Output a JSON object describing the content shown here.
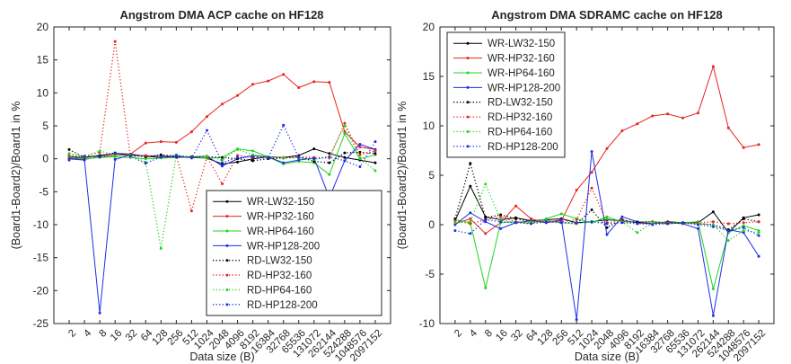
{
  "figure": {
    "shared_xlabel": "Data size (B)",
    "shared_ylabel": "(Board1-Board2)/Board1 in %"
  },
  "chart_data": [
    {
      "type": "line",
      "title": "Angstrom DMA ACP cache on HF128",
      "xlabel": "Data size (B)",
      "ylabel": "(Board1-Board2)/Board1 in %",
      "categories": [
        "2",
        "4",
        "8",
        "16",
        "32",
        "64",
        "128",
        "256",
        "512",
        "1024",
        "2048",
        "4096",
        "8192",
        "16384",
        "32768",
        "65536",
        "131072",
        "262144",
        "524288",
        "1048576",
        "2097152"
      ],
      "ylim": [
        -25,
        20
      ],
      "yticks": [
        -25,
        -20,
        -15,
        -10,
        -5,
        0,
        5,
        10,
        15,
        20
      ],
      "legend_position": "lower-right",
      "series": [
        {
          "name": "WR-LW32-150",
          "color": "#000000",
          "style": "solid",
          "values": [
            0.3,
            0.2,
            0.5,
            0.8,
            0.7,
            0.4,
            0.2,
            0.3,
            0.2,
            0.1,
            -0.8,
            -0.5,
            0.0,
            0.3,
            0.2,
            0.5,
            1.5,
            0.8,
            0.2,
            -0.2,
            -0.6
          ]
        },
        {
          "name": "WR-HP32-160",
          "color": "#e8231f",
          "style": "solid",
          "values": [
            0.1,
            -0.1,
            0.3,
            0.5,
            0.7,
            2.4,
            2.6,
            2.5,
            4.1,
            6.4,
            8.3,
            9.6,
            11.3,
            11.8,
            12.8,
            10.8,
            11.7,
            11.6,
            4.1,
            1.8,
            1.4
          ]
        },
        {
          "name": "WR-HP64-160",
          "color": "#20d420",
          "style": "solid",
          "values": [
            0.2,
            0.0,
            0.2,
            0.3,
            0.2,
            0.0,
            0.1,
            0.2,
            0.3,
            0.1,
            0.2,
            1.5,
            1.2,
            0.3,
            -0.8,
            -0.4,
            -0.6,
            -2.4,
            3.8,
            0.0,
            0.6
          ]
        },
        {
          "name": "WR-HP128-200",
          "color": "#1d2ee8",
          "style": "solid",
          "values": [
            0.0,
            -0.2,
            -23.4,
            -0.1,
            0.6,
            0.4,
            0.5,
            0.2,
            0.3,
            0.4,
            -1.1,
            0.0,
            0.5,
            0.3,
            -0.6,
            -0.2,
            0.1,
            -5.9,
            -0.3,
            2.2,
            1.4
          ]
        },
        {
          "name": "RD-LW32-150",
          "color": "#000000",
          "style": "dotted",
          "values": [
            1.4,
            0.2,
            0.5,
            0.9,
            0.5,
            0.3,
            0.6,
            0.4,
            0.3,
            0.3,
            0.2,
            0.0,
            -0.3,
            0.0,
            0.1,
            0.3,
            -0.4,
            -0.6,
            0.9,
            1.0,
            0.8
          ]
        },
        {
          "name": "RD-HP32-160",
          "color": "#e8231f",
          "style": "dotted",
          "values": [
            0.5,
            0.4,
            1.0,
            17.8,
            0.4,
            0.5,
            0.3,
            0.5,
            -7.9,
            0.3,
            -3.8,
            0.5,
            0.2,
            0.3,
            0.1,
            0.3,
            0.2,
            0.1,
            5.4,
            0.6,
            1.2
          ]
        },
        {
          "name": "RD-HP64-160",
          "color": "#20d420",
          "style": "dotted",
          "values": [
            0.8,
            0.3,
            1.2,
            0.6,
            0.5,
            -0.5,
            -13.6,
            0.6,
            0.2,
            0.4,
            -0.2,
            1.4,
            0.6,
            0.3,
            0.2,
            0.1,
            -0.1,
            0.3,
            5.0,
            0.1,
            -1.8
          ]
        },
        {
          "name": "RD-HP128-200",
          "color": "#1d2ee8",
          "style": "dotted",
          "values": [
            -0.2,
            0.4,
            0.3,
            0.8,
            0.4,
            -0.7,
            0.3,
            0.5,
            0.1,
            4.3,
            -0.6,
            0.2,
            0.3,
            0.1,
            5.1,
            0.2,
            0.0,
            0.3,
            -0.3,
            -1.2,
            2.6
          ]
        }
      ]
    },
    {
      "type": "line",
      "title": "Angstrom DMA SDRAMC cache on HF128",
      "xlabel": "Data size (B)",
      "ylabel": "(Board1-Board2)/Board1 in %",
      "categories": [
        "2",
        "4",
        "8",
        "16",
        "32",
        "64",
        "128",
        "256",
        "512",
        "1024",
        "2048",
        "4096",
        "8192",
        "16384",
        "32768",
        "65536",
        "131072",
        "262144",
        "524288",
        "1048576",
        "2097152"
      ],
      "ylim": [
        -10,
        20
      ],
      "yticks": [
        -10,
        -5,
        0,
        5,
        10,
        15,
        20
      ],
      "legend_position": "upper-left",
      "series": [
        {
          "name": "WR-LW32-150",
          "color": "#000000",
          "style": "solid",
          "values": [
            0.4,
            3.9,
            0.8,
            0.5,
            0.7,
            0.4,
            0.5,
            0.6,
            0.2,
            0.3,
            0.5,
            0.4,
            0.2,
            0.1,
            0.3,
            0.2,
            0.2,
            1.3,
            -0.8,
            0.7,
            1.0
          ]
        },
        {
          "name": "WR-HP32-160",
          "color": "#e8231f",
          "style": "solid",
          "values": [
            0.1,
            0.6,
            -0.9,
            0.2,
            1.9,
            0.6,
            0.2,
            0.4,
            3.5,
            5.3,
            7.7,
            9.5,
            10.2,
            11.0,
            11.2,
            10.8,
            11.3,
            16.0,
            9.8,
            7.8,
            8.1
          ]
        },
        {
          "name": "WR-HP64-160",
          "color": "#20d420",
          "style": "solid",
          "values": [
            0.5,
            0.2,
            -6.4,
            0.2,
            0.3,
            0.1,
            0.6,
            1.1,
            0.6,
            0.2,
            0.8,
            0.3,
            0.3,
            0.3,
            0.2,
            0.2,
            0.3,
            -6.5,
            -0.8,
            -0.1,
            -0.6
          ]
        },
        {
          "name": "WR-HP128-200",
          "color": "#1d2ee8",
          "style": "solid",
          "values": [
            0.0,
            1.2,
            0.3,
            -0.4,
            0.2,
            0.4,
            0.2,
            0.5,
            -9.6,
            7.4,
            -1.0,
            0.8,
            0.3,
            0.1,
            0.2,
            0.1,
            -0.4,
            -9.2,
            -0.5,
            -0.8,
            -3.2
          ]
        },
        {
          "name": "RD-LW32-150",
          "color": "#000000",
          "style": "dotted",
          "values": [
            0.6,
            6.2,
            0.7,
            1.0,
            0.6,
            0.3,
            0.4,
            0.2,
            0.1,
            1.5,
            -0.3,
            0.5,
            0.2,
            0.3,
            0.1,
            0.2,
            0.1,
            0.0,
            -0.5,
            0.6,
            0.3
          ]
        },
        {
          "name": "RD-HP32-160",
          "color": "#e8231f",
          "style": "dotted",
          "values": [
            0.4,
            0.1,
            0.5,
            0.8,
            0.3,
            0.2,
            0.4,
            0.3,
            0.5,
            3.7,
            0.2,
            0.4,
            0.1,
            0.3,
            0.2,
            0.1,
            0.2,
            0.3,
            0.1,
            0.2,
            0.3
          ]
        },
        {
          "name": "RD-HP64-160",
          "color": "#20d420",
          "style": "dotted",
          "values": [
            0.2,
            0.3,
            4.1,
            0.5,
            0.2,
            0.3,
            0.4,
            0.2,
            0.1,
            0.3,
            0.6,
            0.3,
            -0.8,
            0.2,
            0.1,
            0.2,
            0.1,
            0.0,
            -1.6,
            -0.6,
            -0.8
          ]
        },
        {
          "name": "RD-HP128-200",
          "color": "#1d2ee8",
          "style": "dotted",
          "values": [
            -0.6,
            -0.9,
            0.5,
            0.3,
            0.2,
            0.1,
            0.3,
            0.2,
            0.2,
            0.3,
            0.1,
            0.2,
            0.1,
            0.0,
            0.1,
            0.2,
            0.0,
            -0.2,
            -0.6,
            -0.3,
            -1.1
          ]
        }
      ]
    }
  ]
}
